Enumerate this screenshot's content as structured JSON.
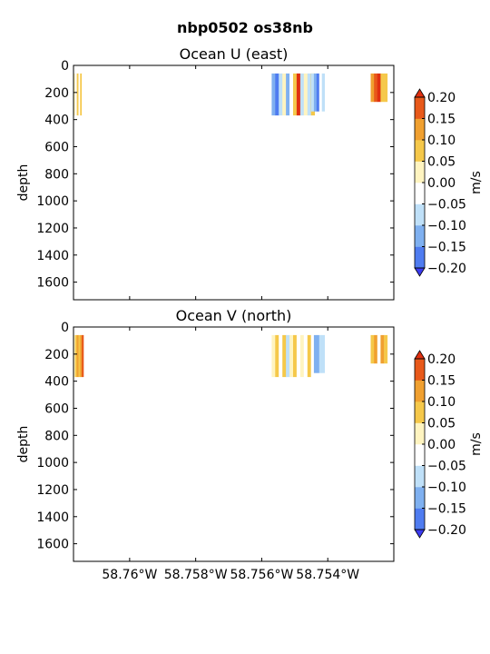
{
  "figure_title": "nbp0502 os38nb",
  "chart_data": [
    {
      "type": "heatmap",
      "title": "Ocean U (east)",
      "ylabel": "depth",
      "ylim": [
        1730,
        0
      ],
      "y_ticks": [
        "0",
        "200",
        "400",
        "600",
        "800",
        "1000",
        "1200",
        "1400",
        "1600"
      ],
      "xlim": [
        -58.7617,
        -58.752
      ],
      "x_ticks": [],
      "colorbar": {
        "label": "m/s",
        "levels": [
          -0.2,
          -0.15,
          -0.1,
          -0.05,
          0.0,
          0.05,
          0.1,
          0.15,
          0.2
        ],
        "tick_labels": [
          "0.20",
          "0.15",
          "0.10",
          "0.05",
          "0.00",
          "−0.05",
          "−0.10",
          "−0.15",
          "−0.20"
        ],
        "extend": "both",
        "colors": [
          "#3b3bf0",
          "#4f7cf0",
          "#7fb0f0",
          "#bfe0f8",
          "#ffffff",
          "#fff4c0",
          "#f5c84a",
          "#f0a030",
          "#e8591a",
          "#e03010"
        ]
      },
      "patches": [
        {
          "x0": -58.7617,
          "x1": -58.7614,
          "d0": 60,
          "d1": 370,
          "values": [
            0.02,
            -0.03,
            0.08,
            -0.04,
            0.05,
            -0.02
          ]
        },
        {
          "x0": -58.7557,
          "x1": -58.7544,
          "d0": 60,
          "d1": 370,
          "values": [
            -0.12,
            -0.18,
            -0.08,
            0.03,
            -0.15,
            -0.05,
            0.06,
            0.2,
            -0.1,
            0.02,
            -0.06,
            0.05
          ]
        },
        {
          "x0": -58.7545,
          "x1": -58.7541,
          "d0": 60,
          "d1": 340,
          "values": [
            -0.08,
            -0.12,
            -0.16,
            -0.05,
            -0.1
          ]
        },
        {
          "x0": -58.7527,
          "x1": -58.7522,
          "d0": 60,
          "d1": 270,
          "values": [
            0.12,
            0.18,
            0.2,
            0.08,
            0.05
          ]
        }
      ]
    },
    {
      "type": "heatmap",
      "title": "Ocean V (north)",
      "ylabel": "depth",
      "ylim": [
        1730,
        0
      ],
      "y_ticks": [
        "0",
        "200",
        "400",
        "600",
        "800",
        "1000",
        "1200",
        "1400",
        "1600"
      ],
      "xlim": [
        -58.7617,
        -58.752
      ],
      "x_ticks": [
        {
          "value": -58.76,
          "label": "58.76°W"
        },
        {
          "value": -58.758,
          "label": "58.758°W"
        },
        {
          "value": -58.756,
          "label": "58.756°W"
        },
        {
          "value": -58.754,
          "label": "58.754°W"
        }
      ],
      "colorbar": {
        "label": "m/s",
        "levels": [
          -0.2,
          -0.15,
          -0.1,
          -0.05,
          0.0,
          0.05,
          0.1,
          0.15,
          0.2
        ],
        "tick_labels": [
          "0.20",
          "0.15",
          "0.10",
          "0.05",
          "0.00",
          "−0.05",
          "−0.10",
          "−0.15",
          "−0.20"
        ],
        "extend": "both",
        "colors": [
          "#3b3bf0",
          "#4f7cf0",
          "#7fb0f0",
          "#bfe0f8",
          "#ffffff",
          "#fff4c0",
          "#f5c84a",
          "#f0a030",
          "#e8591a",
          "#e03010"
        ]
      },
      "patches": [
        {
          "x0": -58.7617,
          "x1": -58.7614,
          "d0": 60,
          "d1": 370,
          "values": [
            0.02,
            0.06,
            0.1,
            0.08,
            0.12,
            0.15
          ]
        },
        {
          "x0": -58.7557,
          "x1": -58.7544,
          "d0": 60,
          "d1": 370,
          "values": [
            0.04,
            0.07,
            -0.03,
            0.05,
            -0.06,
            0.02,
            0.08,
            -0.04,
            0.03,
            -0.05,
            0.06,
            -0.02
          ]
        },
        {
          "x0": -58.7545,
          "x1": -58.7541,
          "d0": 60,
          "d1": 340,
          "values": [
            -0.05,
            -0.12,
            -0.15,
            -0.08,
            -0.1
          ]
        },
        {
          "x0": -58.7527,
          "x1": -58.7522,
          "d0": 60,
          "d1": 270,
          "values": [
            0.05,
            0.1,
            -0.05,
            0.12,
            0.08
          ]
        }
      ]
    }
  ]
}
